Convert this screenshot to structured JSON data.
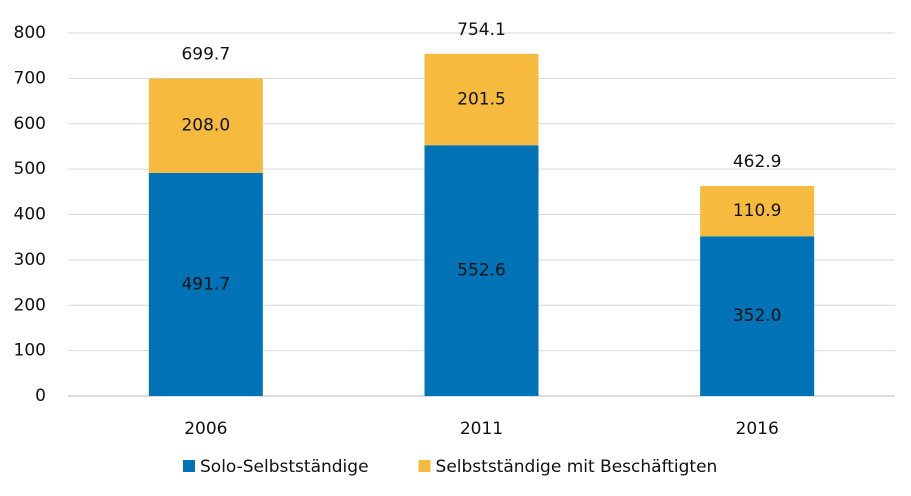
{
  "chart_data": {
    "type": "stacked_bar",
    "categories": [
      "2006",
      "2011",
      "2016"
    ],
    "series": [
      {
        "name": "Solo-Selbstständige",
        "color": "#0072b6",
        "values": [
          491.7,
          552.6,
          352.0
        ],
        "value_labels": [
          "491.7",
          "552.6",
          "352.0"
        ]
      },
      {
        "name": "Selbstständige mit Beschäftigten",
        "color": "#f6bb3e",
        "values": [
          208.0,
          201.5,
          110.9
        ],
        "value_labels": [
          "208.0",
          "201.5",
          "110.9"
        ]
      }
    ],
    "totals": [
      699.7,
      754.1,
      462.9
    ],
    "ylim": [
      0,
      800
    ],
    "yticks": [
      0,
      100,
      200,
      300,
      400,
      500,
      600,
      700,
      800
    ],
    "grid": true,
    "legend": "bottom"
  }
}
